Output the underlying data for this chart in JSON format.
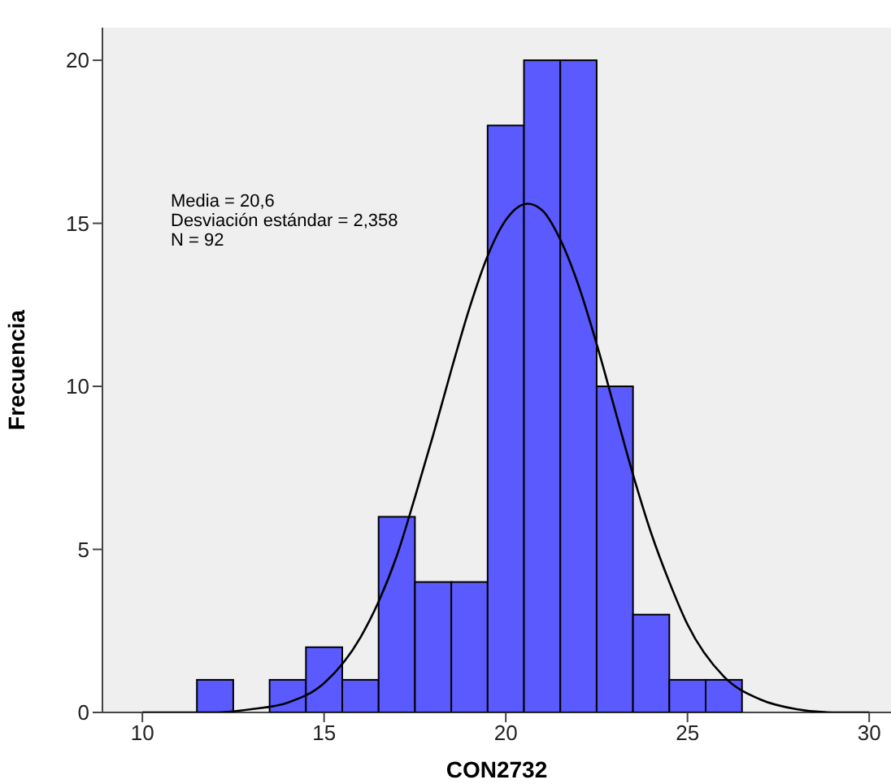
{
  "chart_data": {
    "type": "histogram",
    "xlabel": "CON2732",
    "ylabel": "Frecuencia",
    "annotations": [
      "Media = 20,6",
      "Desviación estándar = 2,358",
      "N = 92"
    ],
    "bins": [
      11.5,
      12.5,
      13.5,
      14.5,
      15.5,
      16.5,
      17.5,
      18.5,
      19.5,
      20.5,
      21.5,
      22.5,
      23.5,
      24.5,
      25.5,
      26.5
    ],
    "values": [
      1,
      0,
      1,
      2,
      1,
      6,
      4,
      4,
      18,
      20,
      20,
      10,
      3,
      1,
      1
    ],
    "color": "#5a5aff",
    "series": [
      {
        "type": "line",
        "color": "#000000",
        "x": [
          10,
          11,
          12,
          13,
          14,
          15,
          16,
          16.5,
          17,
          17.5,
          18,
          18.5,
          19,
          19.5,
          20,
          20.6,
          21,
          21.5,
          22,
          22.5,
          23,
          23.5,
          24,
          24.5,
          25,
          26,
          27,
          28,
          29,
          30
        ],
        "values": [
          0,
          0,
          0,
          0.1,
          0.3,
          0.9,
          2.3,
          3.4,
          4.8,
          6.6,
          8.5,
          10.5,
          12.4,
          14,
          15.1,
          15.6,
          15.4,
          14.5,
          13.1,
          11.3,
          9.3,
          7.3,
          5.5,
          4,
          2.7,
          1.1,
          0.4,
          0.1,
          0,
          0
        ]
      }
    ],
    "xlim": [
      8.9,
      30.6
    ],
    "xticks": [
      10,
      15,
      20,
      25,
      30
    ],
    "ylim": [
      0,
      21
    ],
    "yticks": [
      0,
      5,
      10,
      15,
      20
    ],
    "grid": false,
    "marker": "none"
  }
}
